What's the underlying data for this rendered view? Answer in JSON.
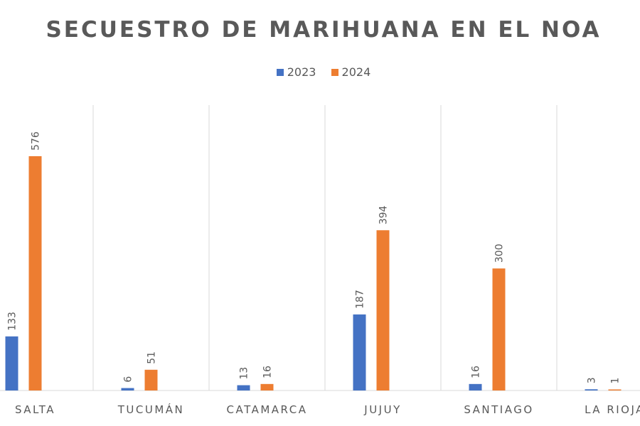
{
  "chart_data": {
    "type": "bar",
    "title": "SECUESTRO DE MARIHUANA EN EL NOA",
    "categories": [
      "SALTA",
      "TUCUMÁN",
      "CATAMARCA",
      "JUJUY",
      "SANTIAGO",
      "LA RIOJA"
    ],
    "series": [
      {
        "name": "2023",
        "color": "#4472C4",
        "values": [
          133,
          6,
          13,
          187,
          16,
          3
        ]
      },
      {
        "name": "2024",
        "color": "#ED7D31",
        "values": [
          576,
          51,
          16,
          394,
          300,
          1
        ]
      }
    ],
    "xlabel": "",
    "ylabel": "",
    "ylim": [
      0,
      600
    ],
    "data_labels": true,
    "legend": "top",
    "grid": "vertical category separators"
  }
}
